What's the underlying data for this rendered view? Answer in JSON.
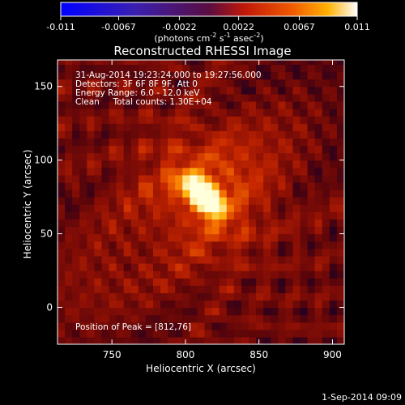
{
  "chart_data": {
    "type": "heatmap",
    "title": "Reconstructed RHESSI Image",
    "xlabel": "Heliocentric X (arcsec)",
    "ylabel": "Heliocentric Y (arcsec)",
    "xlim": [
      713,
      908
    ],
    "ylim": [
      -25,
      168
    ],
    "x_ticks": [
      750,
      800,
      850,
      900
    ],
    "y_ticks": [
      0,
      50,
      100,
      150
    ],
    "peak": [
      812,
      76
    ],
    "annotations": [
      "31-Aug-2014 19:23:24.000 to 19:27:56.000",
      "Detectors: 3F 6F 8F 9F, Att 0",
      "Energy Range: 6.0 - 12.0 keV",
      "Clean     Total counts: 1.30E+04"
    ],
    "peak_label": "Position of Peak = [812,76]",
    "colorbar": {
      "ticks": [
        "-0.011",
        "-0.0067",
        "-0.0022",
        "0.0022",
        "0.0067",
        "0.011"
      ],
      "min": -0.011,
      "max": 0.011,
      "units": "(photons cm",
      "units_exp1": "-2",
      "units_mid": " s",
      "units_exp2": "-1",
      "units_end": " asec",
      "units_exp3": "-2",
      "units_close": ")"
    },
    "footer": "1-Sep-2014 09:09"
  }
}
